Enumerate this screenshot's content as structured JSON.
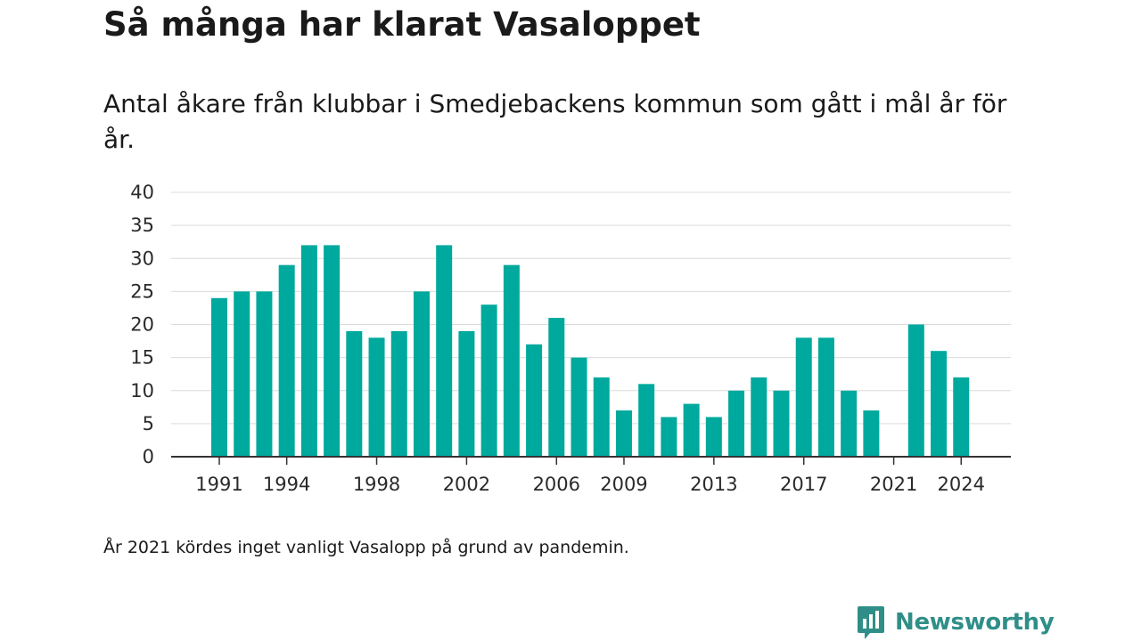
{
  "header": {
    "title": "Så många har klarat Vasaloppet",
    "subtitle": "Antal åkare från klubbar i Smedjebackens kommun som gått i mål år för år."
  },
  "footnote": "År 2021 kördes inget vanligt Vasalopp på grund av pandemin.",
  "brand": {
    "name": "Newsworthy",
    "icon": "newsworthy-logo-icon",
    "color": "#2f8f88"
  },
  "chart_data": {
    "type": "bar",
    "title": "Så många har klarat Vasaloppet",
    "subtitle": "Antal åkare från klubbar i Smedjebackens kommun som gått i mål år för år.",
    "xlabel": "",
    "ylabel": "",
    "categories": [
      1991,
      1992,
      1993,
      1994,
      1995,
      1996,
      1997,
      1998,
      1999,
      2000,
      2001,
      2002,
      2003,
      2004,
      2005,
      2006,
      2007,
      2008,
      2009,
      2010,
      2011,
      2012,
      2013,
      2014,
      2015,
      2016,
      2017,
      2018,
      2019,
      2020,
      2021,
      2022,
      2023,
      2024
    ],
    "values": [
      24,
      25,
      25,
      29,
      32,
      32,
      19,
      18,
      19,
      25,
      32,
      19,
      23,
      29,
      17,
      21,
      15,
      12,
      7,
      11,
      6,
      8,
      6,
      10,
      12,
      10,
      18,
      18,
      10,
      7,
      null,
      20,
      16,
      12
    ],
    "x_tick_labels": [
      "1991",
      "1994",
      "1998",
      "2002",
      "2006",
      "2009",
      "2013",
      "2017",
      "2021",
      "2024"
    ],
    "y_ticks": [
      0,
      5,
      10,
      15,
      20,
      25,
      30,
      35,
      40
    ],
    "ylim": [
      0,
      40
    ],
    "grid": true,
    "legend": "none",
    "bar_color": "#00a99d"
  }
}
